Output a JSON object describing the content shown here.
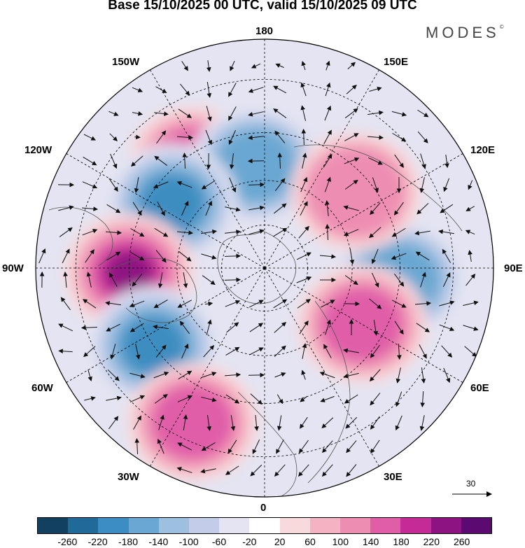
{
  "title": "Base 15/10/2025 00 UTC, valid 15/10/2025 09 UTC",
  "brand": "MODES",
  "brand_mark": "©",
  "longitude_labels": {
    "top": "180",
    "bottom": "0",
    "left": "90W",
    "right": "90E",
    "upper_left_1": "150W",
    "upper_left_2": "120W",
    "upper_right_1": "150E",
    "upper_right_2": "120E",
    "lower_left_1": "60W",
    "lower_left_2": "30W",
    "lower_right_1": "60E",
    "lower_right_2": "30E"
  },
  "reference_vector": "30",
  "colorbar": {
    "colors": [
      "#12405f",
      "#1f6a99",
      "#3c8dc1",
      "#6aa7d2",
      "#9dbfe0",
      "#c3cde9",
      "#e4e4f2",
      "#ffffff",
      "#f8dadc",
      "#f4b3c2",
      "#ee8db2",
      "#e05da8",
      "#c42b96",
      "#8e1382",
      "#5b0a72"
    ],
    "labels": [
      "-260",
      "-220",
      "-180",
      "-140",
      "-100",
      "-60",
      "-20",
      "20",
      "60",
      "100",
      "140",
      "180",
      "220",
      "260"
    ]
  },
  "anomaly_fields": [
    {
      "name": "ne-pacific-positive",
      "lon_center": -145,
      "lat_center": 48,
      "value": 160
    },
    {
      "name": "alaska-negative",
      "lon_center": -175,
      "lat_center": 55,
      "value": -160
    },
    {
      "name": "w-canada-negative",
      "lon_center": -125,
      "lat_center": 52,
      "value": -210
    },
    {
      "name": "hudson-positive",
      "lon_center": -88,
      "lat_center": 45,
      "value": 250
    },
    {
      "name": "n-atlantic-negative",
      "lon_center": -55,
      "lat_center": 45,
      "value": -180
    },
    {
      "name": "mid-atlantic-positive",
      "lon_center": -25,
      "lat_center": 35,
      "value": 140
    },
    {
      "name": "siberia-negative",
      "lon_center": 85,
      "lat_center": 45,
      "value": -170
    },
    {
      "name": "urals-positive",
      "lon_center": 60,
      "lat_center": 52,
      "value": 170
    },
    {
      "name": "e-siberia-positive",
      "lon_center": 130,
      "lat_center": 50,
      "value": 110
    }
  ]
}
